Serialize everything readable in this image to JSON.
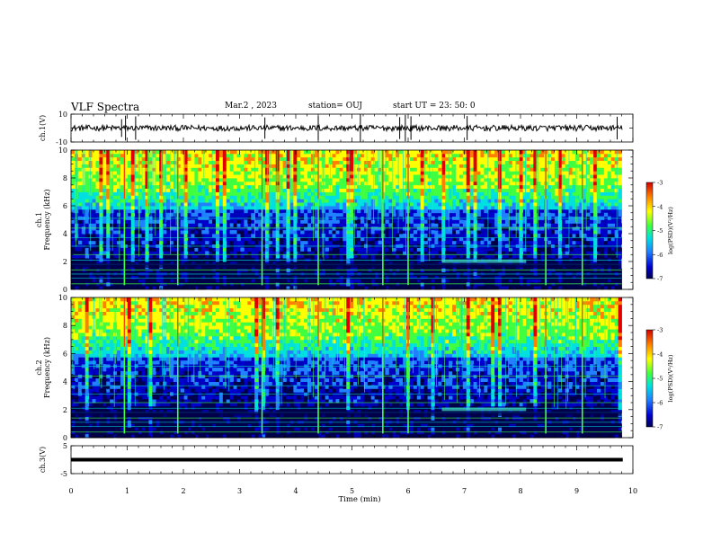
{
  "header": {
    "title": "VLF Spectra",
    "date": "Mar.2 , 2023",
    "station": "station= OUJ",
    "start": "start UT = 23: 50: 0"
  },
  "colors": {
    "background": "#ffffff",
    "axis": "#000000",
    "colormap": [
      "#00004a",
      "#0000d0",
      "#2080ff",
      "#00e0e0",
      "#40ff40",
      "#ffff00",
      "#ff8000",
      "#e00000"
    ]
  },
  "chart_data": [
    {
      "id": "ch1-waveform",
      "type": "line",
      "ylabel": "ch.1(V)",
      "ylim": [
        -10,
        10
      ],
      "yticks": [
        "10",
        "-10"
      ],
      "xlim": [
        0,
        10
      ],
      "baseline": 0,
      "spikes_min": [
        0.9,
        0.97,
        1.15,
        3.45,
        4.4,
        5.15,
        5.85,
        5.95,
        6.05,
        7.05,
        9.72
      ]
    },
    {
      "id": "ch1-spectrogram",
      "type": "heatmap",
      "ylabel": "ch.1\nFrequency (kHz)",
      "ylim": [
        0,
        10
      ],
      "yticks": [
        "0",
        "2",
        "4",
        "6",
        "8",
        "10"
      ],
      "xlim": [
        0,
        9.8
      ],
      "colorbar": {
        "label": "log(PSD)(V²/Hz)",
        "range": [
          -7,
          -3
        ],
        "ticks": [
          "-3",
          "-4",
          "-5",
          "-6",
          "-7"
        ]
      },
      "strong_sferics_min": [
        0.95,
        1.9,
        3.4,
        4.4,
        5.55,
        6.0,
        8.45,
        9.1
      ],
      "horizontal_lines_khz": [
        0.4,
        0.8,
        1.1,
        1.4,
        1.8,
        2.1,
        2.5,
        3.1,
        3.7,
        4.4,
        5.1
      ]
    },
    {
      "id": "ch2-spectrogram",
      "type": "heatmap",
      "ylabel": "ch.2\nFrequency (kHz)",
      "ylim": [
        0,
        10
      ],
      "yticks": [
        "0",
        "2",
        "4",
        "6",
        "8",
        "10"
      ],
      "xlim": [
        0,
        9.8
      ],
      "colorbar": {
        "label": "log(PSD)(V²/Hz)",
        "range": [
          -7,
          -3
        ],
        "ticks": [
          "-3",
          "-4",
          "-5",
          "-6",
          "-7"
        ]
      },
      "strong_sferics_min": [
        0.95,
        1.9,
        3.4,
        4.4,
        5.55,
        6.0,
        8.45,
        9.1
      ],
      "horizontal_lines_khz": [
        0.4,
        0.8,
        1.1,
        1.4,
        1.8,
        2.1,
        2.5,
        3.1,
        3.7,
        4.4,
        5.1
      ]
    },
    {
      "id": "ch3-waveform",
      "type": "line",
      "ylabel": "ch.3(V)",
      "ylim": [
        -5,
        5
      ],
      "yticks": [
        "5",
        "-5"
      ],
      "xlim": [
        0,
        10
      ],
      "baseline": 0
    }
  ],
  "xaxis": {
    "label": "Time (min)",
    "ticks": [
      "0",
      "1",
      "2",
      "3",
      "4",
      "5",
      "6",
      "7",
      "8",
      "9",
      "10"
    ]
  }
}
